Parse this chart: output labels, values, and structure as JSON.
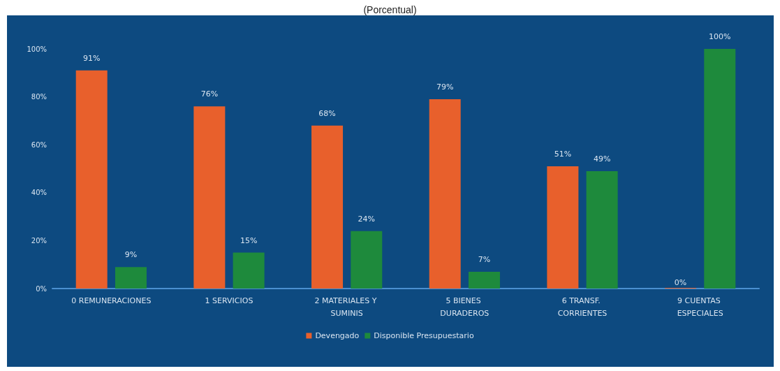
{
  "chart_data": {
    "type": "bar",
    "title": "(Porcentual)",
    "categories": [
      "0 REMUNERACIONES",
      "1 SERVICIOS",
      "2 MATERIALES Y SUMINIS",
      "5 BIENES DURADEROS",
      "6 TRANSF. CORRIENTES",
      "9 CUENTAS ESPECIALES"
    ],
    "series": [
      {
        "name": "Devengado",
        "color": "#e8602c",
        "values": [
          91,
          76,
          68,
          79,
          51,
          0
        ],
        "value_labels": [
          "91%",
          "76%",
          "68%",
          "79%",
          "51%",
          "0%"
        ]
      },
      {
        "name": "Disponible Presupuestario",
        "color": "#1e8a3c",
        "values": [
          9,
          15,
          24,
          7,
          49,
          100
        ],
        "value_labels": [
          "9%",
          "15%",
          "24%",
          "7%",
          "49%",
          "100%"
        ]
      }
    ],
    "ylim": [
      0,
      100
    ],
    "yticks": [
      {
        "value": 0,
        "label": "0%"
      },
      {
        "value": 20,
        "label": "20%"
      },
      {
        "value": 40,
        "label": "40%"
      },
      {
        "value": 60,
        "label": "60%"
      },
      {
        "value": 80,
        "label": "80%"
      },
      {
        "value": 100,
        "label": "100%"
      }
    ],
    "grid": false,
    "legend": "bottom"
  }
}
